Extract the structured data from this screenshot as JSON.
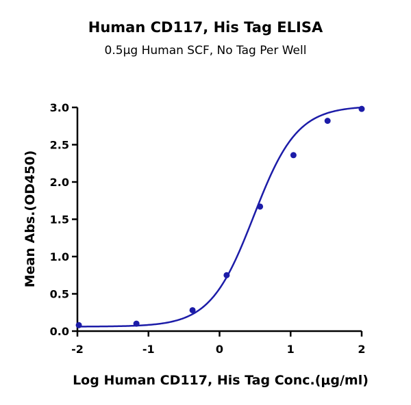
{
  "chart_data": {
    "type": "scatter",
    "title": "Human CD117, His Tag ELISA",
    "subtitle": "0.5μg Human SCF, No Tag Per Well",
    "xlabel": "Log Human CD117, His Tag Conc.(μg/ml)",
    "ylabel": "Mean Abs.(OD450)",
    "xlim": [
      -2,
      2
    ],
    "ylim": [
      0,
      3
    ],
    "xticks": [
      "-2",
      "-1",
      "0",
      "1",
      "2"
    ],
    "yticks": [
      "0.0",
      "0.5",
      "1.0",
      "1.5",
      "2.0",
      "2.5",
      "3.0"
    ],
    "grid": false,
    "points": {
      "x": [
        -1.98,
        -1.17,
        -0.38,
        0.1,
        0.57,
        1.04,
        1.52,
        2.0
      ],
      "y": [
        0.08,
        0.1,
        0.28,
        0.75,
        1.67,
        2.36,
        2.82,
        2.98
      ]
    },
    "fit_curve": {
      "type": "4PL",
      "bottom": 0.06,
      "top": 3.02,
      "log_ec50": 0.48,
      "hill": 1.42
    },
    "colors": {
      "series": "#1c1ca8",
      "axis": "#000000"
    }
  }
}
